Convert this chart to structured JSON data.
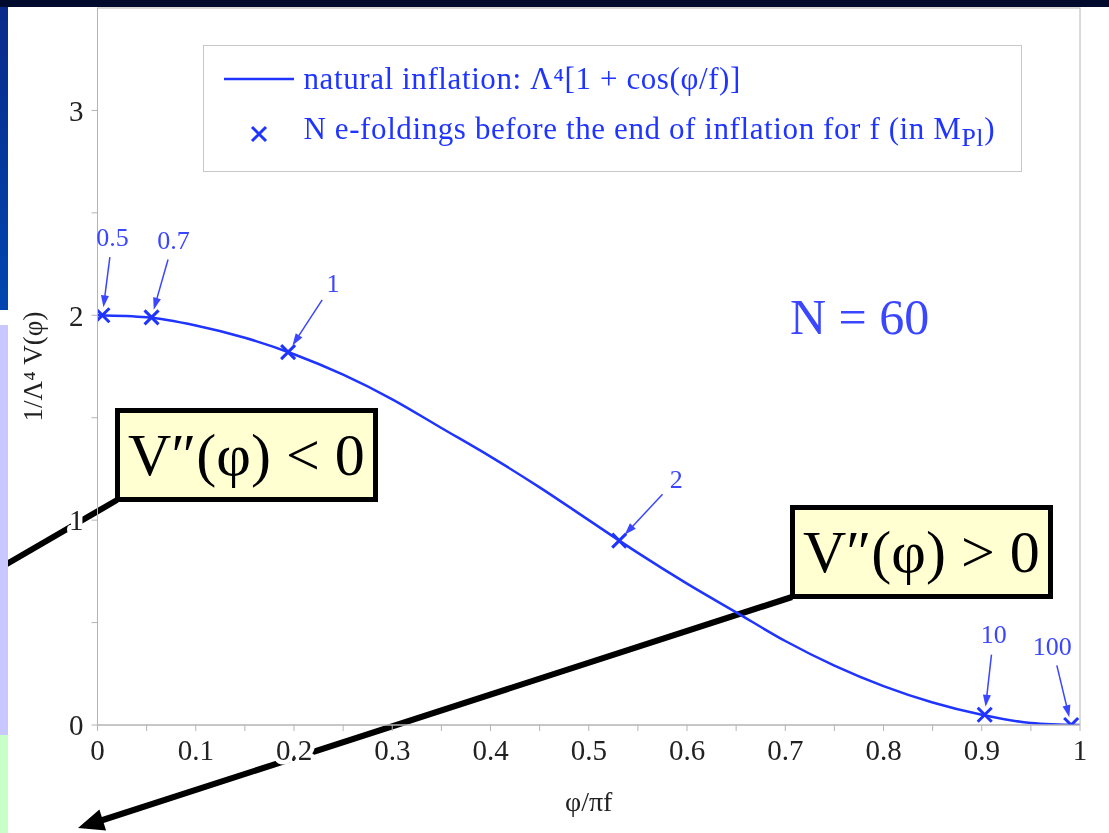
{
  "chart_data": {
    "type": "line",
    "xlabel": "φ/πf",
    "ylabel": "1/Λ⁴ V(φ)",
    "xlim": [
      0,
      1
    ],
    "ylim": [
      0,
      3.5
    ],
    "xticks": [
      0,
      {
        "value": 0.05,
        "label": null
      },
      0.1,
      {
        "value": 0.15,
        "label": null
      },
      0.2,
      {
        "value": 0.25,
        "label": null
      },
      0.3,
      {
        "value": 0.35,
        "label": null
      },
      0.4,
      {
        "value": 0.45,
        "label": null
      },
      0.5,
      {
        "value": 0.55,
        "label": null
      },
      0.6,
      {
        "value": 0.65,
        "label": null
      },
      0.7,
      {
        "value": 0.75,
        "label": null
      },
      0.8,
      {
        "value": 0.85,
        "label": null
      },
      0.9,
      {
        "value": 0.95,
        "label": null
      },
      1
    ],
    "yticks": [
      0,
      {
        "value": 0.5,
        "label": null
      },
      1,
      {
        "value": 1.5,
        "label": null
      },
      2,
      {
        "value": 2.5,
        "label": null
      },
      3
    ],
    "legend": "top",
    "series": [
      {
        "name": "natural inflation: Λ⁴[1 + cos(φ/f)]",
        "color": "#1f35ff",
        "type": "line",
        "x": [
          0,
          0.05,
          0.1,
          0.15,
          0.2,
          0.25,
          0.3,
          0.35,
          0.4,
          0.45,
          0.5,
          0.55,
          0.6,
          0.65,
          0.7,
          0.75,
          0.8,
          0.85,
          0.9,
          0.95,
          1
        ],
        "values": [
          2,
          1.99,
          1.95,
          1.89,
          1.81,
          1.71,
          1.59,
          1.45,
          1.31,
          1.16,
          1,
          0.84,
          0.69,
          0.55,
          0.41,
          0.29,
          0.19,
          0.11,
          0.05,
          0.01,
          0
        ]
      },
      {
        "name": "N e-foldings before the end of inflation for f (in M$_{Pl}$)",
        "color": "#1f35ff",
        "type": "scatter",
        "marker": "cross",
        "x": [
          0.005,
          0.055,
          0.194,
          0.531,
          0.903,
          0.991
        ],
        "values": [
          2,
          1.99,
          1.82,
          0.9,
          0.05,
          0
        ]
      }
    ],
    "annotations": [
      {
        "text": "0.5",
        "x": 0.005,
        "y": 2
      },
      {
        "text": "0.7",
        "x": 0.055,
        "y": 1.99
      },
      {
        "text": "1",
        "x": 0.194,
        "y": 1.82
      },
      {
        "text": "2",
        "x": 0.531,
        "y": 0.9
      },
      {
        "text": "10",
        "x": 0.903,
        "y": 0.05
      },
      {
        "text": "100",
        "x": 0.991,
        "y": 0
      },
      "N = 60",
      "V″(φ) < 0",
      "V″(φ) > 0"
    ]
  }
}
